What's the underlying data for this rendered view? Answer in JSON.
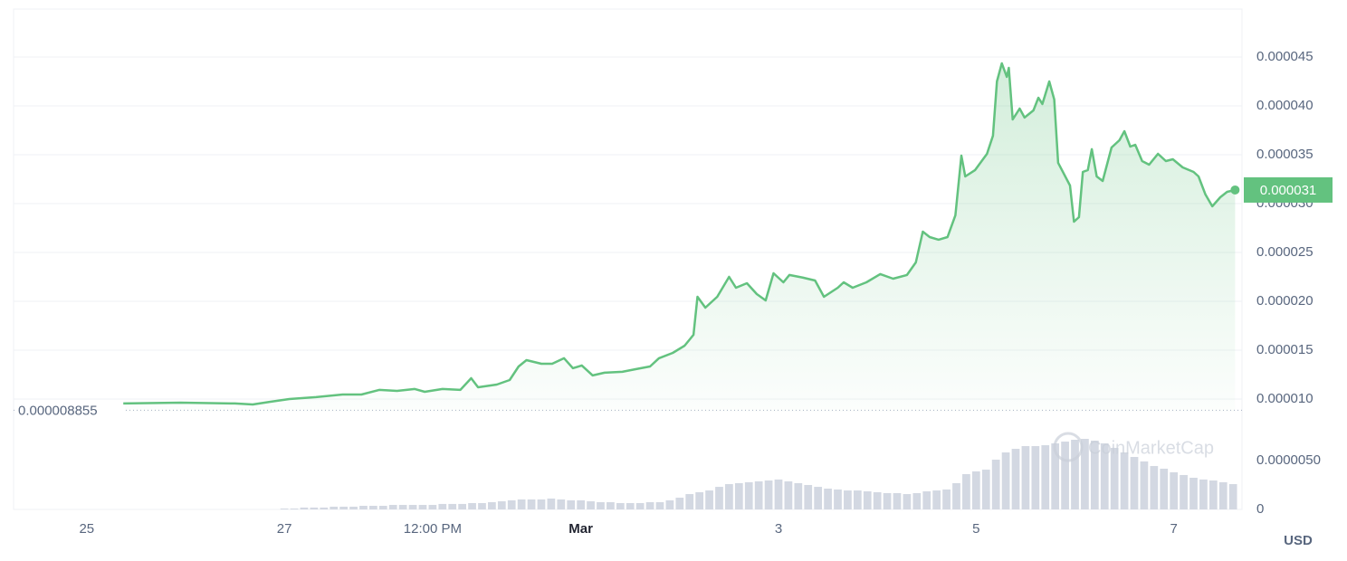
{
  "chart_data": [
    {
      "type": "line",
      "x": [
        25.37,
        25.95,
        26.5,
        26.68,
        26.86,
        27.05,
        27.32,
        27.59,
        27.78,
        27.96,
        28.14,
        28.32,
        28.42,
        28.6,
        28.78,
        28.89,
        28.96,
        29.15,
        29.28,
        29.37,
        29.45,
        29.6,
        29.71,
        29.83,
        29.92,
        30.01,
        30.12,
        30.24,
        30.42,
        30.56,
        30.7,
        30.79,
        30.93,
        31.05,
        31.14,
        31.18,
        31.26,
        31.38,
        31.5,
        31.57,
        31.68,
        31.78,
        31.87,
        31.95,
        32.05,
        32.11,
        32.25,
        32.37,
        32.46,
        32.6,
        32.66,
        32.75,
        32.89,
        33.03,
        33.16,
        33.3,
        33.39,
        33.46,
        33.53,
        33.62,
        33.71,
        33.79,
        33.85,
        33.89,
        33.99,
        34.11,
        34.17,
        34.21,
        34.26,
        34.31,
        34.33,
        34.37,
        34.44,
        34.49,
        34.58,
        34.63,
        34.67,
        34.74,
        34.79,
        34.83,
        34.95,
        34.99,
        35.04,
        35.08,
        35.13,
        35.17,
        35.22,
        35.28,
        35.37,
        35.45,
        35.5,
        35.56,
        35.61,
        35.68,
        35.75,
        35.84,
        35.92,
        35.99,
        36.09,
        36.2,
        36.25,
        36.32,
        36.39,
        36.47,
        36.54,
        36.62
      ],
      "values": [
        9.54e-06,
        9.63e-06,
        9.54e-06,
        9.44e-06,
        9.72e-06,
        1e-05,
        1.019e-05,
        1.046e-05,
        1.046e-05,
        1.093e-05,
        1.083e-05,
        1.102e-05,
        1.074e-05,
        1.102e-05,
        1.093e-05,
        1.213e-05,
        1.12e-05,
        1.148e-05,
        1.194e-05,
        1.333e-05,
        1.398e-05,
        1.361e-05,
        1.361e-05,
        1.417e-05,
        1.315e-05,
        1.343e-05,
        1.241e-05,
        1.269e-05,
        1.278e-05,
        1.306e-05,
        1.333e-05,
        1.417e-05,
        1.472e-05,
        1.546e-05,
        1.657e-05,
        2.046e-05,
        1.935e-05,
        2.046e-05,
        2.25e-05,
        2.139e-05,
        2.185e-05,
        2.074e-05,
        2.009e-05,
        2.287e-05,
        2.194e-05,
        2.269e-05,
        2.241e-05,
        2.213e-05,
        2.046e-05,
        2.139e-05,
        2.194e-05,
        2.139e-05,
        2.194e-05,
        2.278e-05,
        2.231e-05,
        2.269e-05,
        2.398e-05,
        2.713e-05,
        2.657e-05,
        2.63e-05,
        2.657e-05,
        2.88e-05,
        3.491e-05,
        3.278e-05,
        3.343e-05,
        3.509e-05,
        3.694e-05,
        4.25e-05,
        4.435e-05,
        4.296e-05,
        4.389e-05,
        3.861e-05,
        3.972e-05,
        3.88e-05,
        3.954e-05,
        4.083e-05,
        4.019e-05,
        4.25e-05,
        4.065e-05,
        3.417e-05,
        3.185e-05,
        2.815e-05,
        2.861e-05,
        3.324e-05,
        3.343e-05,
        3.556e-05,
        3.278e-05,
        3.231e-05,
        3.574e-05,
        3.648e-05,
        3.741e-05,
        3.583e-05,
        3.602e-05,
        3.435e-05,
        3.398e-05,
        3.509e-05,
        3.435e-05,
        3.454e-05,
        3.37e-05,
        3.324e-05,
        3.278e-05,
        3.093e-05,
        2.972e-05,
        3.065e-05,
        3.12e-05,
        3.139e-05
      ],
      "color": "#63c27f",
      "xlim": [
        24.26,
        36.69
      ],
      "xticks": [
        {
          "value": 25,
          "label": "25"
        },
        {
          "value": 27,
          "label": "27"
        },
        {
          "value": 28.5,
          "label": "12:00 PM"
        },
        {
          "value": 30,
          "label": "Mar"
        },
        {
          "value": 32,
          "label": "3"
        },
        {
          "value": 34,
          "label": "5"
        },
        {
          "value": 36,
          "label": "7"
        }
      ],
      "ylim": [
        8.7e-06,
        5e-05
      ],
      "yticks": [
        {
          "value": 1e-05,
          "label": "0.000010"
        },
        {
          "value": 1.5e-05,
          "label": "0.000015"
        },
        {
          "value": 2e-05,
          "label": "0.000020"
        },
        {
          "value": 2.5e-05,
          "label": "0.000025"
        },
        {
          "value": 3e-05,
          "label": "0.000030"
        },
        {
          "value": 3.5e-05,
          "label": "0.000035"
        },
        {
          "value": 4e-05,
          "label": "0.000040"
        },
        {
          "value": 4.5e-05,
          "label": "0.000045"
        }
      ],
      "grid": true,
      "baseline": 8.855e-06,
      "price_tag": "0.000031",
      "currency_label": "USD",
      "watermark": "CoinMarketCap"
    },
    {
      "type": "bar",
      "x": [
        27,
        27.1,
        27.2,
        27.3,
        27.4,
        27.5,
        27.6,
        27.7,
        27.8,
        27.9,
        28,
        28.1,
        28.2,
        28.3,
        28.4,
        28.5,
        28.6,
        28.7,
        28.8,
        28.9,
        29,
        29.1,
        29.2,
        29.3,
        29.4,
        29.5,
        29.6,
        29.7,
        29.8,
        29.9,
        30,
        30.1,
        30.2,
        30.3,
        30.4,
        30.5,
        30.6,
        30.7,
        30.8,
        30.9,
        31,
        31.1,
        31.2,
        31.3,
        31.4,
        31.5,
        31.6,
        31.7,
        31.8,
        31.9,
        32,
        32.1,
        32.2,
        32.3,
        32.4,
        32.5,
        32.6,
        32.7,
        32.8,
        32.9,
        33,
        33.1,
        33.2,
        33.3,
        33.4,
        33.5,
        33.6,
        33.7,
        33.8,
        33.9,
        34,
        34.1,
        34.2,
        34.3,
        34.4,
        34.5,
        34.6,
        34.7,
        34.8,
        34.9,
        35,
        35.1,
        35.2,
        35.3,
        35.4,
        35.5,
        35.6,
        35.7,
        35.8,
        35.9,
        36,
        36.1,
        36.2,
        36.3,
        36.4,
        36.5,
        36.6
      ],
      "values": [
        9e-08,
        9e-08,
        1.9e-07,
        1.9e-07,
        1.9e-07,
        2.8e-07,
        2.8e-07,
        2.8e-07,
        3.7e-07,
        3.7e-07,
        3.7e-07,
        4.6e-07,
        4.6e-07,
        4.6e-07,
        4.6e-07,
        4.6e-07,
        5.6e-07,
        5.6e-07,
        5.6e-07,
        6.5e-07,
        6.5e-07,
        7.4e-07,
        8.3e-07,
        9.3e-07,
        1.02e-06,
        1.02e-06,
        1.02e-06,
        1.11e-06,
        1.02e-06,
        9.3e-07,
        9.3e-07,
        8.3e-07,
        7.4e-07,
        7.4e-07,
        6.5e-07,
        6.5e-07,
        6.5e-07,
        7.4e-07,
        7.4e-07,
        9.3e-07,
        1.2e-06,
        1.57e-06,
        1.76e-06,
        1.94e-06,
        2.31e-06,
        2.59e-06,
        2.69e-06,
        2.78e-06,
        2.87e-06,
        2.96e-06,
        3.06e-06,
        2.87e-06,
        2.69e-06,
        2.5e-06,
        2.31e-06,
        2.13e-06,
        2.04e-06,
        1.94e-06,
        1.94e-06,
        1.85e-06,
        1.76e-06,
        1.67e-06,
        1.67e-06,
        1.57e-06,
        1.67e-06,
        1.85e-06,
        1.94e-06,
        2.04e-06,
        2.69e-06,
        3.61e-06,
        3.89e-06,
        4.07e-06,
        5.09e-06,
        5.83e-06,
        6.2e-06,
        6.48e-06,
        6.48e-06,
        6.57e-06,
        6.76e-06,
        6.94e-06,
        7.13e-06,
        7.22e-06,
        7.04e-06,
        6.76e-06,
        6.3e-06,
        5.83e-06,
        5.37e-06,
        4.91e-06,
        4.44e-06,
        4.17e-06,
        3.8e-06,
        3.52e-06,
        3.24e-06,
        3.06e-06,
        2.96e-06,
        2.78e-06,
        2.59e-06
      ],
      "color": "#d3d8e2",
      "ylim": [
        0,
        1e-05
      ],
      "yticks": [
        {
          "value": 0,
          "label": "0"
        },
        {
          "value": 5e-06,
          "label": "0.0000050"
        }
      ]
    }
  ]
}
